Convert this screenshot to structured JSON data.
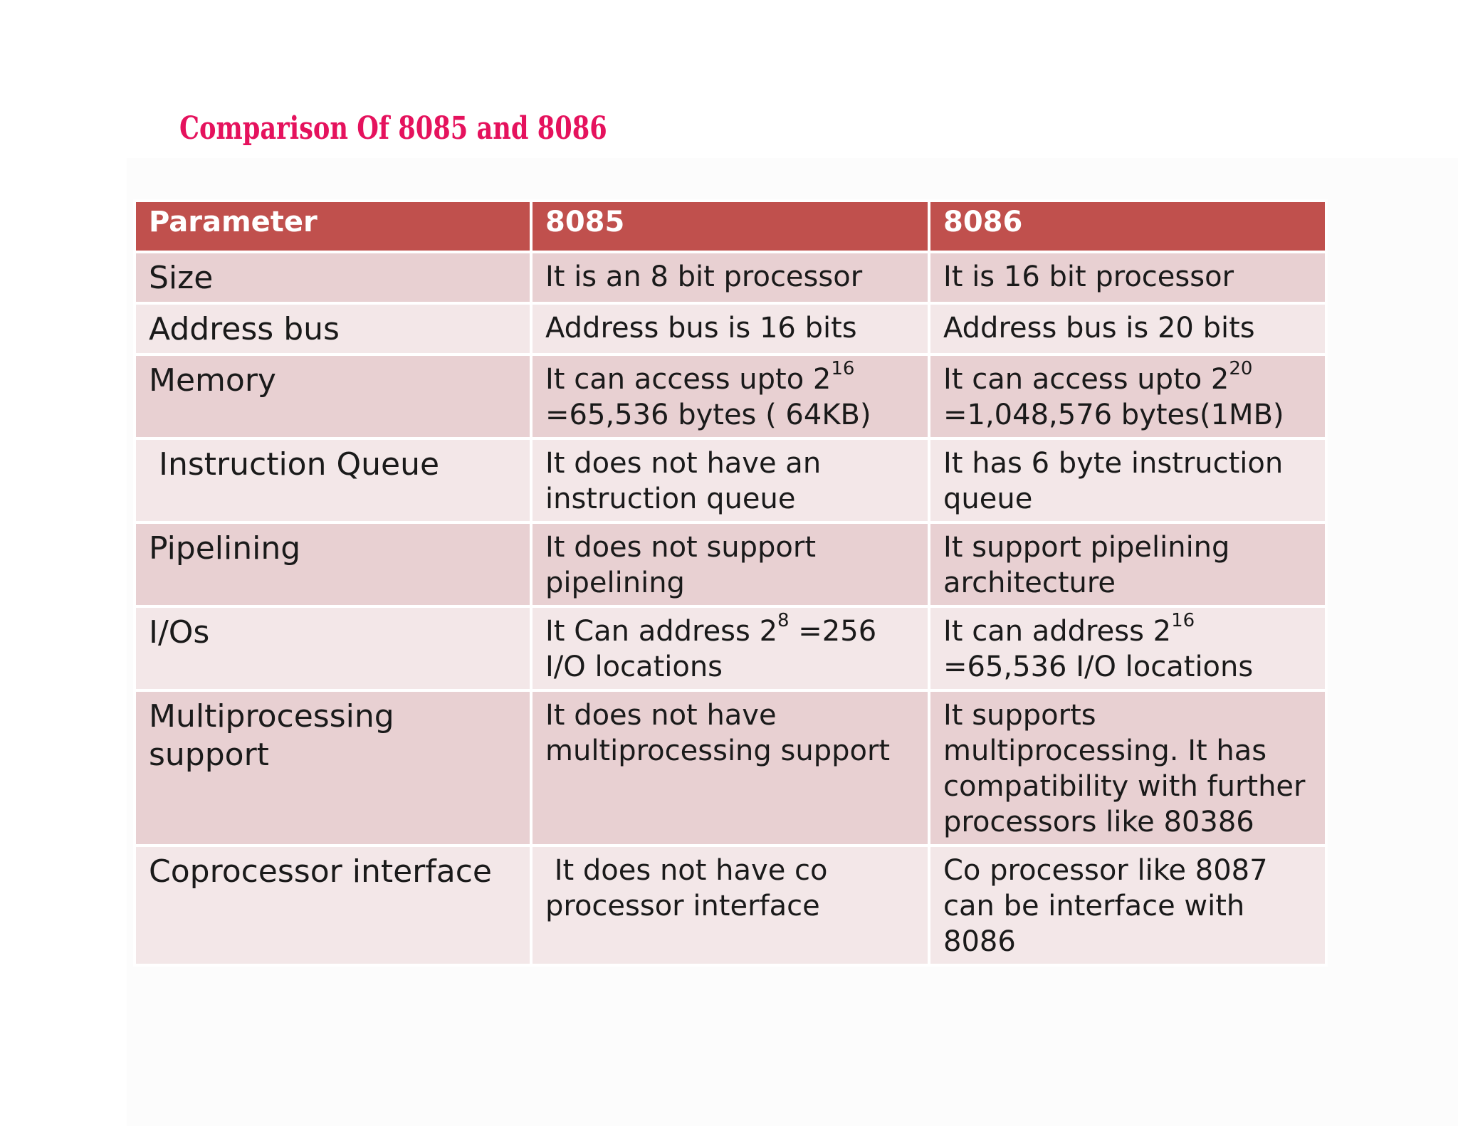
{
  "title": "Comparison Of 8085 and 8086",
  "colors": {
    "title": "#e5125d",
    "header_bg": "#c0504d",
    "row_odd_bg": "#e8d0d2",
    "row_even_bg": "#f3e7e8"
  },
  "table": {
    "headers": [
      "Parameter",
      "8085",
      "8086"
    ],
    "rows": [
      {
        "parameter": "Size",
        "c8085": "It is an 8 bit processor",
        "c8086": "It is 16 bit processor"
      },
      {
        "parameter": "Address bus",
        "c8085": "Address bus is 16 bits",
        "c8086": "Address bus is 20 bits"
      },
      {
        "parameter": "Memory",
        "c8085_pre": "It can access upto 2",
        "c8085_sup": "16",
        "c8085_post": "=65,536 bytes ( 64KB)",
        "c8086_pre": "It can access upto 2",
        "c8086_sup": "20",
        "c8086_post": "=1,048,576 bytes(1MB)"
      },
      {
        "parameter": "Instruction Queue",
        "c8085": "It does not have an instruction queue",
        "c8086": "It has 6 byte instruction queue"
      },
      {
        "parameter": "Pipelining",
        "c8085": "It does not support pipelining",
        "c8086": "It support pipelining architecture"
      },
      {
        "parameter": "I/Os",
        "c8085_pre": "It Can address 2",
        "c8085_sup": "8",
        "c8085_post": " =256 I/O locations",
        "c8086_pre": "It can address 2",
        "c8086_sup": "16",
        "c8086_post": "=65,536 I/O locations"
      },
      {
        "parameter": "Multiprocessing support",
        "c8085": "It does not have multiprocessing support",
        "c8086": "It supports multiprocessing. It has compatibility with further processors like 80386"
      },
      {
        "parameter": "Coprocessor interface",
        "c8085": " It does not have co processor interface",
        "c8086": "Co processor like 8087 can be interface with 8086"
      }
    ]
  }
}
